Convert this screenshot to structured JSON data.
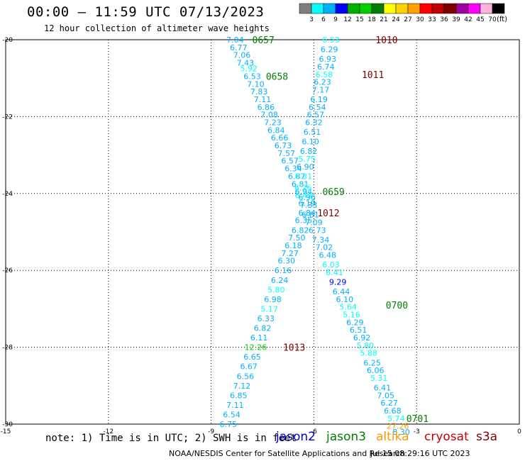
{
  "header": {
    "title": "00:00 – 11:59 UTC 07/13/2023",
    "subtitle": "12 hour collection of altimeter wave heights"
  },
  "color_scale": {
    "labels": [
      "3",
      "6",
      "9",
      "12",
      "15",
      "18",
      "21",
      "24",
      "27",
      "30",
      "33",
      "36",
      "39",
      "42",
      "45",
      "70"
    ],
    "colors": [
      "#7f7f7f",
      "#00ffff",
      "#00b0ff",
      "#0000ff",
      "#00b000",
      "#00d000",
      "#007f00",
      "#ffff00",
      "#ffd000",
      "#ffa000",
      "#ff0000",
      "#c00000",
      "#800000",
      "#a000a0",
      "#ff00ff",
      "#ffb0e0",
      "#000000"
    ],
    "units": "(ft)"
  },
  "footer": {
    "note": "note: 1) Time is in UTC; 2) SWH is in feet",
    "credit": "NOAA/NESDIS Center for Satellite Applications and Research",
    "timestamp": "Jul 15 08:29:16 UTC 2023"
  },
  "legend": [
    {
      "name": "jason2",
      "color": "#0000cc"
    },
    {
      "name": "jason3",
      "color": "#007f00"
    },
    {
      "name": "altika",
      "color": "#ff9900"
    },
    {
      "name": "cryosat",
      "color": "#cc0000"
    },
    {
      "name": "s3a",
      "color": "#800000"
    }
  ],
  "chart_data": {
    "type": "scatter",
    "title": "00:00 – 11:59 UTC 07/13/2023",
    "xlim": [
      -15,
      0
    ],
    "ylim": [
      -30,
      -20
    ],
    "x_ticks": [
      "-15",
      "-12",
      "-9",
      "-6",
      "-3",
      "0"
    ],
    "y_ticks": [
      "-20",
      "-22",
      "-24",
      "-26",
      "-28",
      "-30"
    ],
    "x_tick_values": [
      -15,
      -12,
      -9,
      -6,
      -3,
      0
    ],
    "y_tick_values": [
      -20,
      -22,
      -24,
      -26,
      -28,
      -30
    ],
    "grid": true,
    "series": [
      {
        "name": "jason3",
        "color": "#007f00",
        "labels": [
          {
            "x": -7.8,
            "y": -20.0,
            "text": "0657"
          },
          {
            "x": -7.4,
            "y": -20.95,
            "text": "0658"
          },
          {
            "x": -5.75,
            "y": -23.95,
            "text": "0659"
          },
          {
            "x": -3.9,
            "y": -26.9,
            "text": "0700"
          },
          {
            "x": -3.3,
            "y": -29.85,
            "text": "0701"
          }
        ]
      },
      {
        "name": "s3a",
        "color": "#800000",
        "labels": [
          {
            "x": -4.2,
            "y": -20.0,
            "text": "1010"
          },
          {
            "x": -4.6,
            "y": -20.9,
            "text": "1011"
          },
          {
            "x": -5.9,
            "y": -24.5,
            "text": "1012"
          },
          {
            "x": -6.9,
            "y": -28.0,
            "text": "1013"
          }
        ]
      },
      {
        "name": "track_1",
        "points": [
          {
            "x": -8.3,
            "y": -20.0,
            "v": "7.04",
            "c": "#00b0ff"
          },
          {
            "x": -8.2,
            "y": -20.2,
            "v": "6.77",
            "c": "#00b0ff"
          },
          {
            "x": -8.1,
            "y": -20.4,
            "v": "7.06",
            "c": "#00b0ff"
          },
          {
            "x": -8.0,
            "y": -20.6,
            "v": "7.43",
            "c": "#00b0ff"
          },
          {
            "x": -7.9,
            "y": -20.75,
            "v": "5.92",
            "c": "#00ffff"
          },
          {
            "x": -7.8,
            "y": -20.95,
            "v": "6.53",
            "c": "#00b0ff"
          },
          {
            "x": -7.7,
            "y": -21.15,
            "v": "7.10",
            "c": "#00b0ff"
          },
          {
            "x": -7.6,
            "y": -21.35,
            "v": "7.83",
            "c": "#00b0ff"
          },
          {
            "x": -7.5,
            "y": -21.55,
            "v": "7.11",
            "c": "#00b0ff"
          },
          {
            "x": -7.4,
            "y": -21.75,
            "v": "6.86",
            "c": "#00b0ff"
          },
          {
            "x": -7.3,
            "y": -21.95,
            "v": "7.08",
            "c": "#00b0ff"
          },
          {
            "x": -7.2,
            "y": -22.15,
            "v": "7.23",
            "c": "#00b0ff"
          },
          {
            "x": -7.1,
            "y": -22.35,
            "v": "6.84",
            "c": "#00b0ff"
          },
          {
            "x": -7.0,
            "y": -22.55,
            "v": "6.66",
            "c": "#00b0ff"
          },
          {
            "x": -6.9,
            "y": -22.75,
            "v": "6.73",
            "c": "#00b0ff"
          },
          {
            "x": -6.8,
            "y": -22.95,
            "v": "7.57",
            "c": "#00b0ff"
          },
          {
            "x": -6.7,
            "y": -23.15,
            "v": "6.57",
            "c": "#00b0ff"
          },
          {
            "x": -6.6,
            "y": -23.35,
            "v": "6.34",
            "c": "#00b0ff"
          },
          {
            "x": -6.5,
            "y": -23.55,
            "v": "6.87",
            "c": "#00b0ff"
          },
          {
            "x": -6.4,
            "y": -23.75,
            "v": "6.81",
            "c": "#00b0ff"
          },
          {
            "x": -6.3,
            "y": -23.95,
            "v": "6.94",
            "c": "#00b0ff"
          },
          {
            "x": -6.2,
            "y": -24.1,
            "v": "6.96",
            "c": "#00b0ff"
          },
          {
            "x": -6.15,
            "y": -24.3,
            "v": "7.33",
            "c": "#00b0ff"
          },
          {
            "x": -6.2,
            "y": -24.5,
            "v": "6.84",
            "c": "#00b0ff"
          },
          {
            "x": -6.3,
            "y": -24.7,
            "v": "6.35",
            "c": "#00b0ff"
          },
          {
            "x": -6.4,
            "y": -24.95,
            "v": "6.82",
            "c": "#00b0ff"
          },
          {
            "x": -6.5,
            "y": -25.15,
            "v": "7.50",
            "c": "#00b0ff"
          },
          {
            "x": -6.6,
            "y": -25.35,
            "v": "6.18",
            "c": "#00b0ff"
          },
          {
            "x": -6.7,
            "y": -25.55,
            "v": "7.27",
            "c": "#00b0ff"
          },
          {
            "x": -6.8,
            "y": -25.75,
            "v": "6.30",
            "c": "#00b0ff"
          },
          {
            "x": -6.9,
            "y": -26.0,
            "v": "6.16",
            "c": "#00b0ff"
          },
          {
            "x": -7.0,
            "y": -26.25,
            "v": "6.24",
            "c": "#00b0ff"
          },
          {
            "x": -7.1,
            "y": -26.5,
            "v": "5.80",
            "c": "#00ffff"
          },
          {
            "x": -7.2,
            "y": -26.75,
            "v": "6.98",
            "c": "#00b0ff"
          },
          {
            "x": -7.3,
            "y": -27.0,
            "v": "5.17",
            "c": "#00ffff"
          },
          {
            "x": -7.4,
            "y": -27.25,
            "v": "6.33",
            "c": "#00b0ff"
          },
          {
            "x": -7.5,
            "y": -27.5,
            "v": "6.82",
            "c": "#00b0ff"
          },
          {
            "x": -7.6,
            "y": -27.75,
            "v": "6.11",
            "c": "#00b0ff"
          },
          {
            "x": -7.7,
            "y": -28.0,
            "v": "12.26",
            "c": "#00d000"
          },
          {
            "x": -7.8,
            "y": -28.25,
            "v": "6.65",
            "c": "#00b0ff"
          },
          {
            "x": -7.9,
            "y": -28.5,
            "v": "6.67",
            "c": "#00b0ff"
          },
          {
            "x": -8.0,
            "y": -28.75,
            "v": "6.56",
            "c": "#00b0ff"
          },
          {
            "x": -8.1,
            "y": -29.0,
            "v": "7.12",
            "c": "#00b0ff"
          },
          {
            "x": -8.2,
            "y": -29.25,
            "v": "6.85",
            "c": "#00b0ff"
          },
          {
            "x": -8.3,
            "y": -29.5,
            "v": "7.11",
            "c": "#00b0ff"
          },
          {
            "x": -8.4,
            "y": -29.75,
            "v": "6.54",
            "c": "#00b0ff"
          },
          {
            "x": -8.5,
            "y": -30.0,
            "v": "6.75",
            "c": "#00b0ff"
          }
        ]
      },
      {
        "name": "track_2",
        "points": [
          {
            "x": -5.5,
            "y": -20.0,
            "v": "6.53",
            "c": "#00ffff"
          },
          {
            "x": -5.55,
            "y": -20.25,
            "v": "6.29",
            "c": "#00b0ff"
          },
          {
            "x": -5.6,
            "y": -20.5,
            "v": "6.93",
            "c": "#00b0ff"
          },
          {
            "x": -5.65,
            "y": -20.7,
            "v": "6.74",
            "c": "#00b0ff"
          },
          {
            "x": -5.7,
            "y": -20.9,
            "v": "6.58",
            "c": "#00ffff"
          },
          {
            "x": -5.75,
            "y": -21.1,
            "v": "6.23",
            "c": "#00b0ff"
          },
          {
            "x": -5.8,
            "y": -21.3,
            "v": "7.17",
            "c": "#00b0ff"
          },
          {
            "x": -5.85,
            "y": -21.55,
            "v": "6.19",
            "c": "#00b0ff"
          },
          {
            "x": -5.9,
            "y": -21.75,
            "v": "6.54",
            "c": "#00b0ff"
          },
          {
            "x": -5.95,
            "y": -21.95,
            "v": "6.57",
            "c": "#00b0ff"
          },
          {
            "x": -6.0,
            "y": -22.15,
            "v": "6.32",
            "c": "#00b0ff"
          },
          {
            "x": -6.05,
            "y": -22.4,
            "v": "6.51",
            "c": "#00b0ff"
          },
          {
            "x": -6.1,
            "y": -22.65,
            "v": "6.10",
            "c": "#00b0ff"
          },
          {
            "x": -6.15,
            "y": -22.9,
            "v": "6.82",
            "c": "#00b0ff"
          },
          {
            "x": -6.2,
            "y": -23.1,
            "v": "5.75",
            "c": "#00ffff"
          },
          {
            "x": -6.25,
            "y": -23.3,
            "v": "6.90",
            "c": "#00b0ff"
          },
          {
            "x": -6.3,
            "y": -23.55,
            "v": "6.31",
            "c": "#00ffff"
          },
          {
            "x": -6.32,
            "y": -23.85,
            "v": "6.26",
            "c": "#00ffff"
          },
          {
            "x": -6.3,
            "y": -24.05,
            "v": "6.48",
            "c": "#00ffff"
          },
          {
            "x": -6.2,
            "y": -24.25,
            "v": "6.19",
            "c": "#00b0ff"
          },
          {
            "x": -6.1,
            "y": -24.55,
            "v": "6.81",
            "c": "#00b0ff"
          },
          {
            "x": -6.0,
            "y": -24.75,
            "v": "7.09",
            "c": "#00b0ff"
          },
          {
            "x": -5.9,
            "y": -24.95,
            "v": "6.73",
            "c": "#00b0ff"
          },
          {
            "x": -5.8,
            "y": -25.2,
            "v": "7.34",
            "c": "#00b0ff"
          },
          {
            "x": -5.7,
            "y": -25.4,
            "v": "7.02",
            "c": "#00b0ff"
          },
          {
            "x": -5.6,
            "y": -25.6,
            "v": "6.48",
            "c": "#00b0ff"
          },
          {
            "x": -5.5,
            "y": -25.85,
            "v": "6.03",
            "c": "#00ffff"
          },
          {
            "x": -5.4,
            "y": -26.05,
            "v": "6.41",
            "c": "#00ffff"
          },
          {
            "x": -5.3,
            "y": -26.3,
            "v": "9.29",
            "c": "#0000ff"
          },
          {
            "x": -5.2,
            "y": -26.55,
            "v": "6.44",
            "c": "#00b0ff"
          },
          {
            "x": -5.1,
            "y": -26.75,
            "v": "6.10",
            "c": "#00b0ff"
          },
          {
            "x": -5.0,
            "y": -26.95,
            "v": "5.64",
            "c": "#00ffff"
          },
          {
            "x": -4.9,
            "y": -27.15,
            "v": "5.16",
            "c": "#00ffff"
          },
          {
            "x": -4.8,
            "y": -27.35,
            "v": "6.29",
            "c": "#00b0ff"
          },
          {
            "x": -4.7,
            "y": -27.55,
            "v": "6.51",
            "c": "#00b0ff"
          },
          {
            "x": -4.6,
            "y": -27.75,
            "v": "6.92",
            "c": "#00b0ff"
          },
          {
            "x": -4.5,
            "y": -27.95,
            "v": "5.80",
            "c": "#00ffff"
          },
          {
            "x": -4.4,
            "y": -28.15,
            "v": "5.88",
            "c": "#00ffff"
          },
          {
            "x": -4.3,
            "y": -28.4,
            "v": "6.25",
            "c": "#00b0ff"
          },
          {
            "x": -4.2,
            "y": -28.6,
            "v": "6.06",
            "c": "#00b0ff"
          },
          {
            "x": -4.1,
            "y": -28.8,
            "v": "5.31",
            "c": "#00ffff"
          },
          {
            "x": -4.0,
            "y": -29.05,
            "v": "6.41",
            "c": "#00b0ff"
          },
          {
            "x": -3.9,
            "y": -29.25,
            "v": "7.05",
            "c": "#00b0ff"
          },
          {
            "x": -3.8,
            "y": -29.45,
            "v": "6.27",
            "c": "#00b0ff"
          },
          {
            "x": -3.7,
            "y": -29.65,
            "v": "6.68",
            "c": "#00b0ff"
          },
          {
            "x": -3.6,
            "y": -29.85,
            "v": "5.74",
            "c": "#00ffff"
          },
          {
            "x": -3.55,
            "y": -30.05,
            "v": "27.26",
            "c": "#ffa000"
          },
          {
            "x": -3.45,
            "y": -30.2,
            "v": "8.30",
            "c": "#00b0ff"
          }
        ]
      }
    ]
  }
}
